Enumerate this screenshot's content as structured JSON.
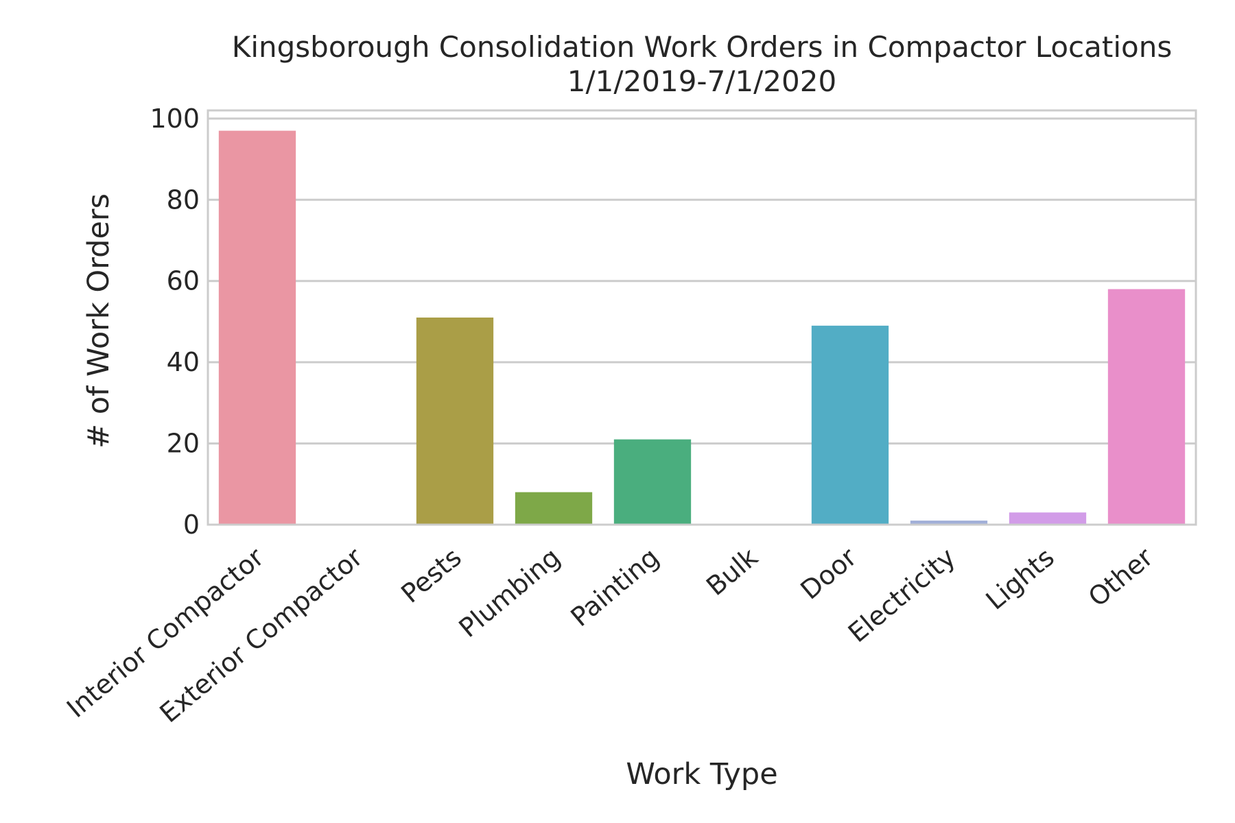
{
  "chart_data": {
    "type": "bar",
    "title": "Kingsborough Consolidation Work Orders in Compactor Locations",
    "subtitle": "1/1/2019-7/1/2020",
    "xlabel": "Work Type",
    "ylabel": "# of Work Orders",
    "categories": [
      "Interior Compactor",
      "Exterior Compactor",
      "Pests",
      "Plumbing",
      "Painting",
      "Bulk",
      "Door",
      "Electricity",
      "Lights",
      "Other"
    ],
    "values": [
      97,
      0,
      51,
      8,
      21,
      0,
      49,
      1,
      3,
      58
    ],
    "colors": [
      "#ea96a3",
      "#d49f55",
      "#aa9e47",
      "#7ea848",
      "#4aae7e",
      "#4dac9f",
      "#52adc5",
      "#a1afd8",
      "#d29ce8",
      "#e98fca"
    ],
    "ylim": [
      0,
      102
    ],
    "yticks": [
      0,
      20,
      40,
      60,
      80,
      100
    ],
    "grid": true,
    "grid_color": "#cccccc",
    "legend": "none"
  }
}
